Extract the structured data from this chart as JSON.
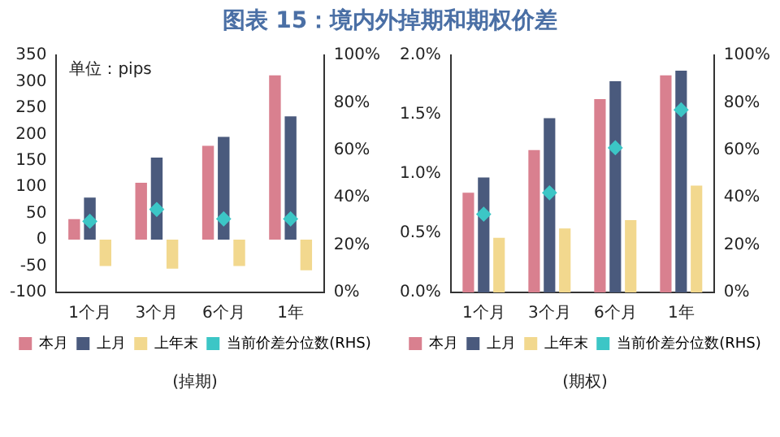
{
  "chart_data": [
    {
      "type": "bar",
      "title": "图表 15：境内外掉期和期权价差",
      "xlabel": "(掉期)",
      "annotations": [
        "单位：pips"
      ],
      "categories": [
        "1个月",
        "3个月",
        "6个月",
        "1年"
      ],
      "series": [
        {
          "name": "本月",
          "color": "#d9808f",
          "values": [
            39,
            108,
            178,
            312
          ]
        },
        {
          "name": "上月",
          "color": "#4a5a7d",
          "values": [
            80,
            156,
            195,
            234
          ]
        },
        {
          "name": "上年末",
          "color": "#f2d88e",
          "values": [
            -50,
            -55,
            -50,
            -58
          ]
        },
        {
          "name": "当前价差分位数(RHS)",
          "type": "scatter",
          "axis": "y2",
          "color": "#3cc6c6",
          "values": [
            30,
            35,
            31,
            31
          ]
        }
      ],
      "ylim": [
        -100,
        350
      ],
      "yticks": [
        -100,
        -50,
        0,
        50,
        100,
        150,
        200,
        250,
        300,
        350
      ],
      "y2lim": [
        0,
        100
      ],
      "y2ticks": [
        {
          "value": 0,
          "label": "0%"
        },
        {
          "value": 20,
          "label": "20%"
        },
        {
          "value": 40,
          "label": "40%"
        },
        {
          "value": 60,
          "label": "60%"
        },
        {
          "value": 80,
          "label": "80%"
        },
        {
          "value": 100,
          "label": "100%"
        }
      ],
      "marker": "diamond",
      "grid": false,
      "legend": "bottom"
    },
    {
      "type": "bar",
      "xlabel": "(期权)",
      "categories": [
        "1个月",
        "3个月",
        "6个月",
        "1年"
      ],
      "series": [
        {
          "name": "本月",
          "color": "#d9808f",
          "values": [
            0.84,
            1.2,
            1.63,
            1.83
          ]
        },
        {
          "name": "上月",
          "color": "#4a5a7d",
          "values": [
            0.97,
            1.47,
            1.78,
            1.87
          ]
        },
        {
          "name": "上年末",
          "color": "#f2d88e",
          "values": [
            0.46,
            0.54,
            0.61,
            0.9
          ]
        },
        {
          "name": "当前价差分位数(RHS)",
          "type": "scatter",
          "axis": "y2",
          "color": "#3cc6c6",
          "values": [
            33,
            42,
            61,
            77
          ]
        }
      ],
      "ylim": [
        0,
        2
      ],
      "yticks": [
        {
          "value": 0,
          "label": "0.0%"
        },
        {
          "value": 0.5,
          "label": "0.5%"
        },
        {
          "value": 1,
          "label": "1.0%"
        },
        {
          "value": 1.5,
          "label": "1.5%"
        },
        {
          "value": 2,
          "label": "2.0%"
        }
      ],
      "y2lim": [
        0,
        100
      ],
      "y2ticks": [
        {
          "value": 0,
          "label": "0%"
        },
        {
          "value": 20,
          "label": "20%"
        },
        {
          "value": 40,
          "label": "40%"
        },
        {
          "value": 60,
          "label": "60%"
        },
        {
          "value": 80,
          "label": "80%"
        },
        {
          "value": 100,
          "label": "100%"
        }
      ],
      "marker": "diamond",
      "grid": false,
      "legend": "bottom"
    }
  ]
}
